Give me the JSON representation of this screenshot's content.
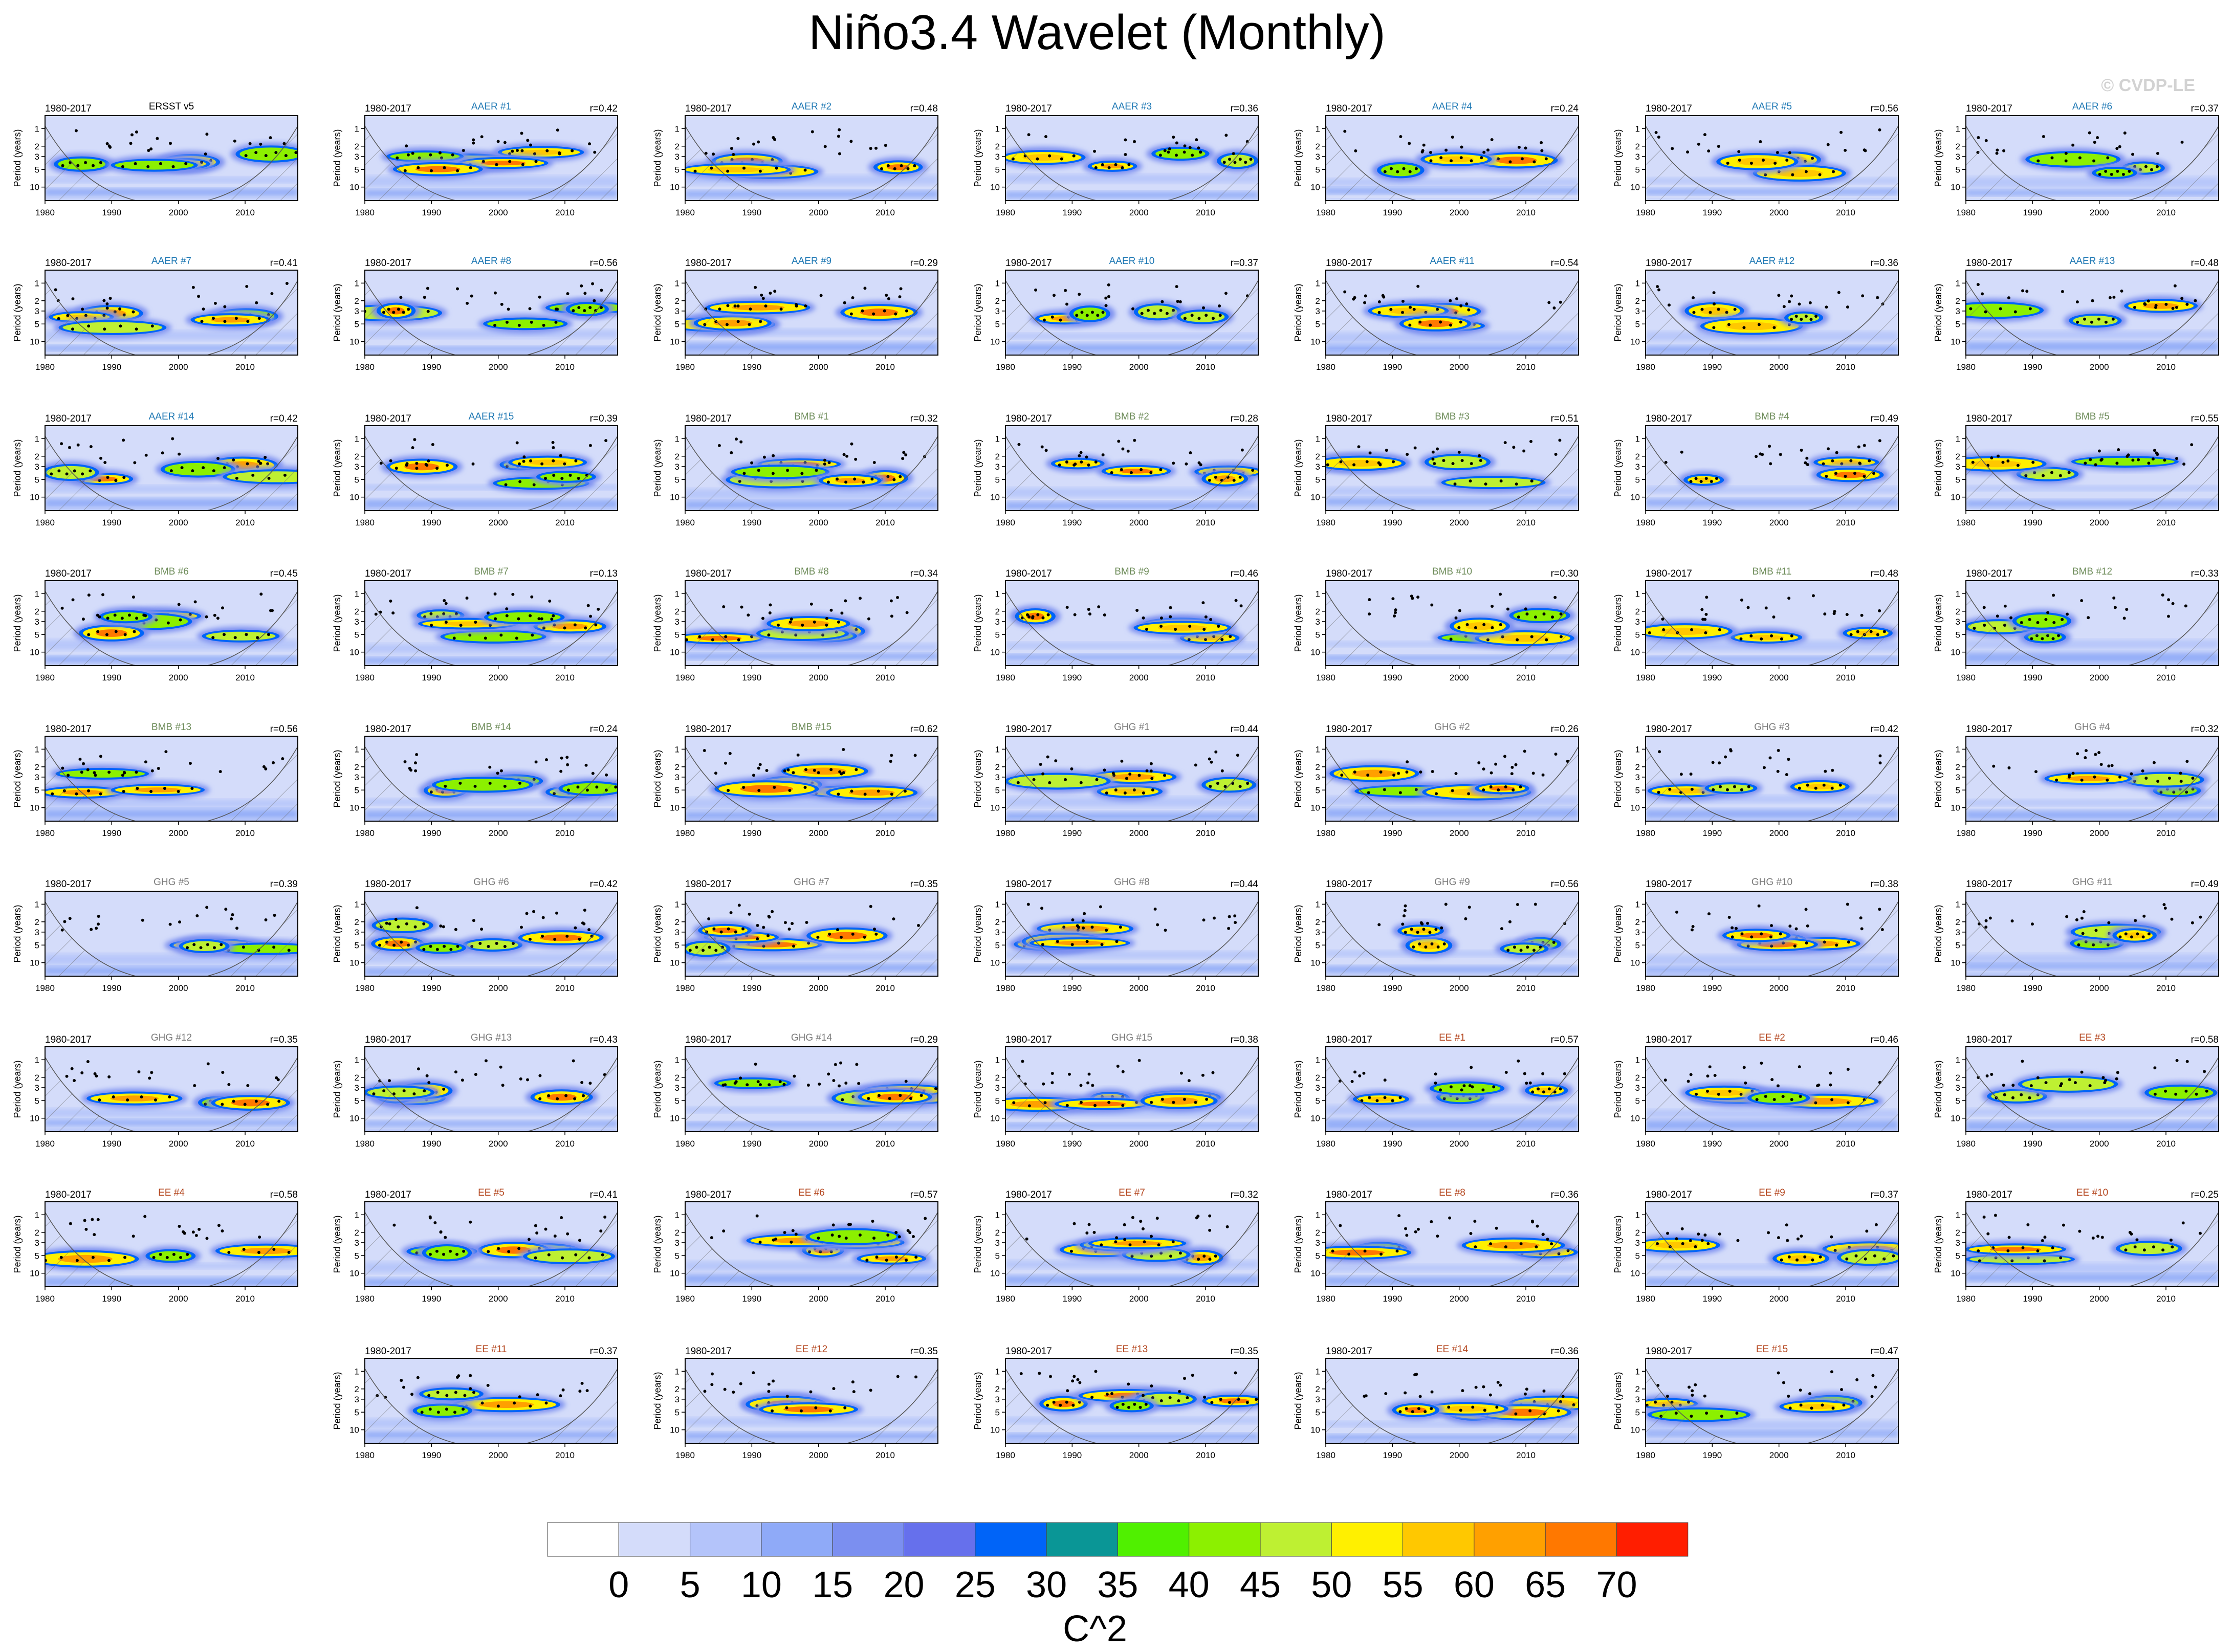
{
  "title": "Niño3.4 Wavelet (Monthly)",
  "watermark": "© CVDP-LE",
  "colorbar": {
    "label": "C^2",
    "levels": [
      "0",
      "5",
      "10",
      "15",
      "20",
      "25",
      "30",
      "35",
      "40",
      "45",
      "50",
      "55",
      "60",
      "65",
      "70"
    ],
    "colors": [
      "#ffffff",
      "#d4dcfa",
      "#b4c4fa",
      "#8faaf8",
      "#7b8ff0",
      "#6670ec",
      "#0064f8",
      "#0a9696",
      "#50f000",
      "#8cf000",
      "#bef032",
      "#fff000",
      "#ffc800",
      "#ffa000",
      "#ff7800",
      "#ff1e00"
    ]
  },
  "axes": {
    "ylabel": "Period (years)",
    "yticks": [
      "1",
      "2",
      "3",
      "5",
      "10"
    ],
    "xticks": [
      "1980",
      "1990",
      "2000",
      "2010"
    ]
  },
  "title_colors": {
    "obs": "#000000",
    "AAER": "#1e78b4",
    "BMB": "#6e8c5a",
    "GHG": "#7a7a7a",
    "EE": "#b4461e"
  },
  "chart_data": [
    {
      "type": "heatmap",
      "group": "obs",
      "title": "ERSST v5",
      "period": "1980-2017",
      "r": ""
    },
    {
      "type": "heatmap",
      "group": "AAER",
      "title": "AAER #1",
      "period": "1980-2017",
      "r": "r=0.42"
    },
    {
      "type": "heatmap",
      "group": "AAER",
      "title": "AAER #2",
      "period": "1980-2017",
      "r": "r=0.48"
    },
    {
      "type": "heatmap",
      "group": "AAER",
      "title": "AAER #3",
      "period": "1980-2017",
      "r": "r=0.36"
    },
    {
      "type": "heatmap",
      "group": "AAER",
      "title": "AAER #4",
      "period": "1980-2017",
      "r": "r=0.24"
    },
    {
      "type": "heatmap",
      "group": "AAER",
      "title": "AAER #5",
      "period": "1980-2017",
      "r": "r=0.56"
    },
    {
      "type": "heatmap",
      "group": "AAER",
      "title": "AAER #6",
      "period": "1980-2017",
      "r": "r=0.37"
    },
    {
      "type": "heatmap",
      "group": "AAER",
      "title": "AAER #7",
      "period": "1980-2017",
      "r": "r=0.41"
    },
    {
      "type": "heatmap",
      "group": "AAER",
      "title": "AAER #8",
      "period": "1980-2017",
      "r": "r=0.56"
    },
    {
      "type": "heatmap",
      "group": "AAER",
      "title": "AAER #9",
      "period": "1980-2017",
      "r": "r=0.29"
    },
    {
      "type": "heatmap",
      "group": "AAER",
      "title": "AAER #10",
      "period": "1980-2017",
      "r": "r=0.37"
    },
    {
      "type": "heatmap",
      "group": "AAER",
      "title": "AAER #11",
      "period": "1980-2017",
      "r": "r=0.54"
    },
    {
      "type": "heatmap",
      "group": "AAER",
      "title": "AAER #12",
      "period": "1980-2017",
      "r": "r=0.36"
    },
    {
      "type": "heatmap",
      "group": "AAER",
      "title": "AAER #13",
      "period": "1980-2017",
      "r": "r=0.48"
    },
    {
      "type": "heatmap",
      "group": "AAER",
      "title": "AAER #14",
      "period": "1980-2017",
      "r": "r=0.42"
    },
    {
      "type": "heatmap",
      "group": "AAER",
      "title": "AAER #15",
      "period": "1980-2017",
      "r": "r=0.39"
    },
    {
      "type": "heatmap",
      "group": "BMB",
      "title": "BMB #1",
      "period": "1980-2017",
      "r": "r=0.32"
    },
    {
      "type": "heatmap",
      "group": "BMB",
      "title": "BMB #2",
      "period": "1980-2017",
      "r": "r=0.28"
    },
    {
      "type": "heatmap",
      "group": "BMB",
      "title": "BMB #3",
      "period": "1980-2017",
      "r": "r=0.51"
    },
    {
      "type": "heatmap",
      "group": "BMB",
      "title": "BMB #4",
      "period": "1980-2017",
      "r": "r=0.49"
    },
    {
      "type": "heatmap",
      "group": "BMB",
      "title": "BMB #5",
      "period": "1980-2017",
      "r": "r=0.55"
    },
    {
      "type": "heatmap",
      "group": "BMB",
      "title": "BMB #6",
      "period": "1980-2017",
      "r": "r=0.45"
    },
    {
      "type": "heatmap",
      "group": "BMB",
      "title": "BMB #7",
      "period": "1980-2017",
      "r": "r=0.13"
    },
    {
      "type": "heatmap",
      "group": "BMB",
      "title": "BMB #8",
      "period": "1980-2017",
      "r": "r=0.34"
    },
    {
      "type": "heatmap",
      "group": "BMB",
      "title": "BMB #9",
      "period": "1980-2017",
      "r": "r=0.46"
    },
    {
      "type": "heatmap",
      "group": "BMB",
      "title": "BMB #10",
      "period": "1980-2017",
      "r": "r=0.30"
    },
    {
      "type": "heatmap",
      "group": "BMB",
      "title": "BMB #11",
      "period": "1980-2017",
      "r": "r=0.48"
    },
    {
      "type": "heatmap",
      "group": "BMB",
      "title": "BMB #12",
      "period": "1980-2017",
      "r": "r=0.33"
    },
    {
      "type": "heatmap",
      "group": "BMB",
      "title": "BMB #13",
      "period": "1980-2017",
      "r": "r=0.56"
    },
    {
      "type": "heatmap",
      "group": "BMB",
      "title": "BMB #14",
      "period": "1980-2017",
      "r": "r=0.24"
    },
    {
      "type": "heatmap",
      "group": "BMB",
      "title": "BMB #15",
      "period": "1980-2017",
      "r": "r=0.62"
    },
    {
      "type": "heatmap",
      "group": "GHG",
      "title": "GHG #1",
      "period": "1980-2017",
      "r": "r=0.44"
    },
    {
      "type": "heatmap",
      "group": "GHG",
      "title": "GHG #2",
      "period": "1980-2017",
      "r": "r=0.26"
    },
    {
      "type": "heatmap",
      "group": "GHG",
      "title": "GHG #3",
      "period": "1980-2017",
      "r": "r=0.42"
    },
    {
      "type": "heatmap",
      "group": "GHG",
      "title": "GHG #4",
      "period": "1980-2017",
      "r": "r=0.32"
    },
    {
      "type": "heatmap",
      "group": "GHG",
      "title": "GHG #5",
      "period": "1980-2017",
      "r": "r=0.39"
    },
    {
      "type": "heatmap",
      "group": "GHG",
      "title": "GHG #6",
      "period": "1980-2017",
      "r": "r=0.42"
    },
    {
      "type": "heatmap",
      "group": "GHG",
      "title": "GHG #7",
      "period": "1980-2017",
      "r": "r=0.35"
    },
    {
      "type": "heatmap",
      "group": "GHG",
      "title": "GHG #8",
      "period": "1980-2017",
      "r": "r=0.44"
    },
    {
      "type": "heatmap",
      "group": "GHG",
      "title": "GHG #9",
      "period": "1980-2017",
      "r": "r=0.56"
    },
    {
      "type": "heatmap",
      "group": "GHG",
      "title": "GHG #10",
      "period": "1980-2017",
      "r": "r=0.38"
    },
    {
      "type": "heatmap",
      "group": "GHG",
      "title": "GHG #11",
      "period": "1980-2017",
      "r": "r=0.49"
    },
    {
      "type": "heatmap",
      "group": "GHG",
      "title": "GHG #12",
      "period": "1980-2017",
      "r": "r=0.35"
    },
    {
      "type": "heatmap",
      "group": "GHG",
      "title": "GHG #13",
      "period": "1980-2017",
      "r": "r=0.43"
    },
    {
      "type": "heatmap",
      "group": "GHG",
      "title": "GHG #14",
      "period": "1980-2017",
      "r": "r=0.29"
    },
    {
      "type": "heatmap",
      "group": "GHG",
      "title": "GHG #15",
      "period": "1980-2017",
      "r": "r=0.38"
    },
    {
      "type": "heatmap",
      "group": "EE",
      "title": "EE #1",
      "period": "1980-2017",
      "r": "r=0.57"
    },
    {
      "type": "heatmap",
      "group": "EE",
      "title": "EE #2",
      "period": "1980-2017",
      "r": "r=0.46"
    },
    {
      "type": "heatmap",
      "group": "EE",
      "title": "EE #3",
      "period": "1980-2017",
      "r": "r=0.58"
    },
    {
      "type": "heatmap",
      "group": "EE",
      "title": "EE #4",
      "period": "1980-2017",
      "r": "r=0.58"
    },
    {
      "type": "heatmap",
      "group": "EE",
      "title": "EE #5",
      "period": "1980-2017",
      "r": "r=0.41"
    },
    {
      "type": "heatmap",
      "group": "EE",
      "title": "EE #6",
      "period": "1980-2017",
      "r": "r=0.57"
    },
    {
      "type": "heatmap",
      "group": "EE",
      "title": "EE #7",
      "period": "1980-2017",
      "r": "r=0.32"
    },
    {
      "type": "heatmap",
      "group": "EE",
      "title": "EE #8",
      "period": "1980-2017",
      "r": "r=0.36"
    },
    {
      "type": "heatmap",
      "group": "EE",
      "title": "EE #9",
      "period": "1980-2017",
      "r": "r=0.37"
    },
    {
      "type": "heatmap",
      "group": "EE",
      "title": "EE #10",
      "period": "1980-2017",
      "r": "r=0.25"
    },
    {
      "type": "heatmap",
      "group": "EE",
      "title": "EE #11",
      "period": "1980-2017",
      "r": "r=0.37"
    },
    {
      "type": "heatmap",
      "group": "EE",
      "title": "EE #12",
      "period": "1980-2017",
      "r": "r=0.35"
    },
    {
      "type": "heatmap",
      "group": "EE",
      "title": "EE #13",
      "period": "1980-2017",
      "r": "r=0.35"
    },
    {
      "type": "heatmap",
      "group": "EE",
      "title": "EE #14",
      "period": "1980-2017",
      "r": "r=0.36"
    },
    {
      "type": "heatmap",
      "group": "EE",
      "title": "EE #15",
      "period": "1980-2017",
      "r": "r=0.47"
    }
  ]
}
